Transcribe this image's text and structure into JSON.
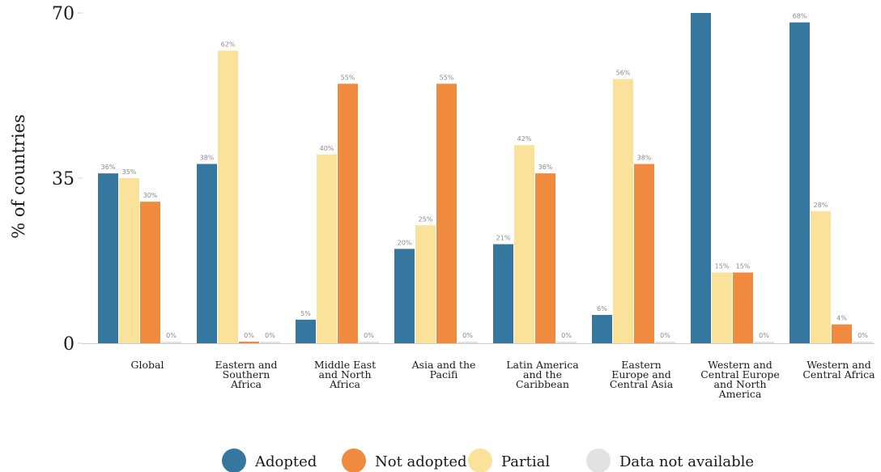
{
  "chart_data": {
    "type": "bar",
    "title": "",
    "xlabel": "",
    "ylabel": "% of countries",
    "ylim": [
      0,
      70
    ],
    "yticks": [
      0,
      35,
      70
    ],
    "grid": false,
    "legend_position": "bottom",
    "categories": [
      [
        "Global"
      ],
      [
        "Eastern and",
        "Southern",
        "Africa"
      ],
      [
        "Middle East",
        "and North",
        "Africa"
      ],
      [
        "Asia and the",
        "Pacifi"
      ],
      [
        "Latin America",
        "and the",
        "Caribbean"
      ],
      [
        "Eastern",
        "Europe and",
        "Central Asia"
      ],
      [
        "Western and",
        "Central Europe",
        "and North",
        "America"
      ],
      [
        "Western and",
        "Central Africa"
      ]
    ],
    "series": [
      {
        "name": "Adopted",
        "color": "#35779f",
        "values": [
          36,
          38,
          5,
          20,
          21,
          6,
          70,
          68
        ],
        "labels": [
          "36%",
          "38%",
          "5%",
          "20%",
          "21%",
          "6%",
          "",
          "68%"
        ]
      },
      {
        "name": "Partial",
        "color": "#fbe29a",
        "values": [
          35,
          62,
          40,
          25,
          42,
          56,
          15,
          28
        ],
        "labels": [
          "35%",
          "62%",
          "40%",
          "25%",
          "42%",
          "56%",
          "15%",
          "28%"
        ]
      },
      {
        "name": "Not adopted",
        "color": "#f08a3e",
        "values": [
          30,
          0,
          55,
          55,
          36,
          38,
          15,
          4
        ],
        "labels": [
          "30%",
          "0%",
          "55%",
          "55%",
          "36%",
          "38%",
          "15%",
          "4%"
        ]
      },
      {
        "name": "Data not available",
        "color": "#e2e2e2",
        "values": [
          0,
          0,
          0,
          0,
          0,
          0,
          0,
          0
        ],
        "labels": [
          "0%",
          "0%",
          "0%",
          "0%",
          "0%",
          "0%",
          "0%",
          "0%"
        ]
      }
    ],
    "legend_order": [
      "Adopted",
      "Not adopted",
      "Partial",
      "Data not available"
    ]
  }
}
